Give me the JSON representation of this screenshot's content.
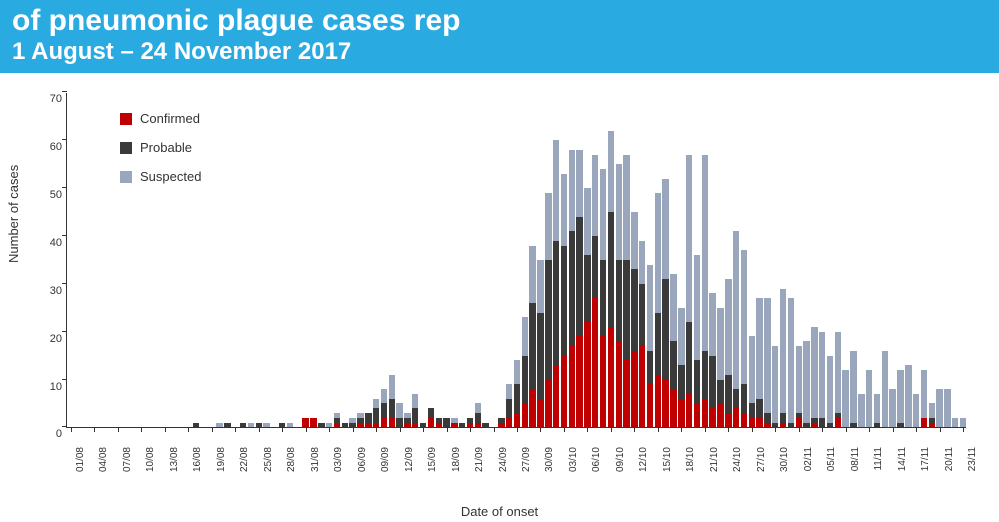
{
  "banner": {
    "line1_fragment": "of pneumonic plague cases rep",
    "line2_fragment": "1 August – 24 November 2017"
  },
  "chart": {
    "type": "stacked-bar",
    "ylabel": "Number of cases",
    "xlabel": "Date of onset",
    "ylim": [
      0,
      70
    ],
    "ytick_step": 10,
    "yticks": [
      0,
      10,
      20,
      30,
      40,
      50,
      60,
      70
    ],
    "background_color": "#ffffff",
    "axis_color": "#333333",
    "label_fontsize": 13,
    "tick_fontsize": 10,
    "bar_gap_ratio": 0.18,
    "series": [
      {
        "key": "confirmed",
        "label": "Confirmed",
        "color": "#c00000"
      },
      {
        "key": "probable",
        "label": "Probable",
        "color": "#3a3a3a"
      },
      {
        "key": "suspected",
        "label": "Suspected",
        "color": "#9aa6bb"
      }
    ],
    "x_tick_labels": [
      "01/08",
      "04/08",
      "07/08",
      "10/08",
      "13/08",
      "16/08",
      "19/08",
      "22/08",
      "25/08",
      "28/08",
      "31/08",
      "03/09",
      "06/09",
      "09/09",
      "12/09",
      "15/09",
      "18/09",
      "21/09",
      "24/09",
      "27/09",
      "30/09",
      "03/10",
      "06/10",
      "09/10",
      "12/10",
      "15/10",
      "18/10",
      "21/10",
      "24/10",
      "27/10",
      "30/10",
      "02/11",
      "05/11",
      "08/11",
      "11/11",
      "14/11",
      "17/11",
      "20/11",
      "23/11"
    ],
    "x_tick_every": 3,
    "data": [
      {
        "c": 0,
        "p": 0,
        "s": 0
      },
      {
        "c": 0,
        "p": 0,
        "s": 0
      },
      {
        "c": 0,
        "p": 0,
        "s": 0
      },
      {
        "c": 0,
        "p": 0,
        "s": 0
      },
      {
        "c": 0,
        "p": 0,
        "s": 0
      },
      {
        "c": 0,
        "p": 0,
        "s": 0
      },
      {
        "c": 0,
        "p": 0,
        "s": 0
      },
      {
        "c": 0,
        "p": 0,
        "s": 0
      },
      {
        "c": 0,
        "p": 0,
        "s": 0
      },
      {
        "c": 0,
        "p": 0,
        "s": 0
      },
      {
        "c": 0,
        "p": 0,
        "s": 0
      },
      {
        "c": 0,
        "p": 0,
        "s": 0
      },
      {
        "c": 0,
        "p": 0,
        "s": 0
      },
      {
        "c": 0,
        "p": 0,
        "s": 0
      },
      {
        "c": 0,
        "p": 0,
        "s": 0
      },
      {
        "c": 0,
        "p": 0,
        "s": 0
      },
      {
        "c": 0,
        "p": 1,
        "s": 0
      },
      {
        "c": 0,
        "p": 0,
        "s": 0
      },
      {
        "c": 0,
        "p": 0,
        "s": 0
      },
      {
        "c": 0,
        "p": 0,
        "s": 1
      },
      {
        "c": 0,
        "p": 1,
        "s": 0
      },
      {
        "c": 0,
        "p": 0,
        "s": 0
      },
      {
        "c": 0,
        "p": 1,
        "s": 0
      },
      {
        "c": 0,
        "p": 0,
        "s": 1
      },
      {
        "c": 0,
        "p": 1,
        "s": 0
      },
      {
        "c": 0,
        "p": 0,
        "s": 1
      },
      {
        "c": 0,
        "p": 0,
        "s": 0
      },
      {
        "c": 0,
        "p": 1,
        "s": 0
      },
      {
        "c": 0,
        "p": 0,
        "s": 1
      },
      {
        "c": 0,
        "p": 0,
        "s": 0
      },
      {
        "c": 2,
        "p": 0,
        "s": 0
      },
      {
        "c": 2,
        "p": 0,
        "s": 0
      },
      {
        "c": 0,
        "p": 1,
        "s": 0
      },
      {
        "c": 0,
        "p": 0,
        "s": 1
      },
      {
        "c": 1,
        "p": 1,
        "s": 1
      },
      {
        "c": 0,
        "p": 1,
        "s": 0
      },
      {
        "c": 0,
        "p": 1,
        "s": 1
      },
      {
        "c": 1,
        "p": 1,
        "s": 1
      },
      {
        "c": 1,
        "p": 2,
        "s": 0
      },
      {
        "c": 1,
        "p": 3,
        "s": 2
      },
      {
        "c": 2,
        "p": 3,
        "s": 3
      },
      {
        "c": 2,
        "p": 4,
        "s": 5
      },
      {
        "c": 0,
        "p": 2,
        "s": 3
      },
      {
        "c": 1,
        "p": 1,
        "s": 1
      },
      {
        "c": 1,
        "p": 3,
        "s": 3
      },
      {
        "c": 0,
        "p": 1,
        "s": 0
      },
      {
        "c": 2,
        "p": 2,
        "s": 0
      },
      {
        "c": 1,
        "p": 1,
        "s": 0
      },
      {
        "c": 0,
        "p": 2,
        "s": 0
      },
      {
        "c": 1,
        "p": 0,
        "s": 1
      },
      {
        "c": 0,
        "p": 1,
        "s": 0
      },
      {
        "c": 1,
        "p": 1,
        "s": 0
      },
      {
        "c": 1,
        "p": 2,
        "s": 2
      },
      {
        "c": 0,
        "p": 1,
        "s": 0
      },
      {
        "c": 0,
        "p": 0,
        "s": 0
      },
      {
        "c": 1,
        "p": 1,
        "s": 0
      },
      {
        "c": 2,
        "p": 4,
        "s": 3
      },
      {
        "c": 3,
        "p": 6,
        "s": 5
      },
      {
        "c": 5,
        "p": 10,
        "s": 8
      },
      {
        "c": 8,
        "p": 18,
        "s": 12
      },
      {
        "c": 6,
        "p": 18,
        "s": 11
      },
      {
        "c": 10,
        "p": 25,
        "s": 14
      },
      {
        "c": 13,
        "p": 26,
        "s": 21
      },
      {
        "c": 15,
        "p": 23,
        "s": 15
      },
      {
        "c": 17,
        "p": 24,
        "s": 17
      },
      {
        "c": 19,
        "p": 25,
        "s": 14
      },
      {
        "c": 22,
        "p": 14,
        "s": 14
      },
      {
        "c": 27,
        "p": 13,
        "s": 17
      },
      {
        "c": 19,
        "p": 16,
        "s": 19
      },
      {
        "c": 21,
        "p": 24,
        "s": 17
      },
      {
        "c": 18,
        "p": 17,
        "s": 20
      },
      {
        "c": 14,
        "p": 21,
        "s": 22
      },
      {
        "c": 16,
        "p": 17,
        "s": 12
      },
      {
        "c": 17,
        "p": 13,
        "s": 9
      },
      {
        "c": 9,
        "p": 7,
        "s": 18
      },
      {
        "c": 11,
        "p": 13,
        "s": 25
      },
      {
        "c": 10,
        "p": 21,
        "s": 21
      },
      {
        "c": 8,
        "p": 10,
        "s": 14
      },
      {
        "c": 6,
        "p": 7,
        "s": 12
      },
      {
        "c": 7,
        "p": 15,
        "s": 35
      },
      {
        "c": 5,
        "p": 9,
        "s": 22
      },
      {
        "c": 6,
        "p": 10,
        "s": 41
      },
      {
        "c": 4,
        "p": 11,
        "s": 13
      },
      {
        "c": 5,
        "p": 5,
        "s": 15
      },
      {
        "c": 3,
        "p": 8,
        "s": 20
      },
      {
        "c": 4,
        "p": 4,
        "s": 33
      },
      {
        "c": 3,
        "p": 6,
        "s": 28
      },
      {
        "c": 2,
        "p": 3,
        "s": 14
      },
      {
        "c": 2,
        "p": 4,
        "s": 21
      },
      {
        "c": 1,
        "p": 2,
        "s": 24
      },
      {
        "c": 0,
        "p": 1,
        "s": 16
      },
      {
        "c": 1,
        "p": 2,
        "s": 26
      },
      {
        "c": 0,
        "p": 1,
        "s": 26
      },
      {
        "c": 2,
        "p": 1,
        "s": 14
      },
      {
        "c": 0,
        "p": 1,
        "s": 17
      },
      {
        "c": 1,
        "p": 1,
        "s": 19
      },
      {
        "c": 0,
        "p": 2,
        "s": 18
      },
      {
        "c": 0,
        "p": 1,
        "s": 14
      },
      {
        "c": 2,
        "p": 1,
        "s": 17
      },
      {
        "c": 0,
        "p": 0,
        "s": 12
      },
      {
        "c": 0,
        "p": 1,
        "s": 15
      },
      {
        "c": 0,
        "p": 0,
        "s": 7
      },
      {
        "c": 0,
        "p": 0,
        "s": 12
      },
      {
        "c": 0,
        "p": 1,
        "s": 6
      },
      {
        "c": 0,
        "p": 0,
        "s": 16
      },
      {
        "c": 0,
        "p": 0,
        "s": 8
      },
      {
        "c": 0,
        "p": 1,
        "s": 11
      },
      {
        "c": 0,
        "p": 0,
        "s": 13
      },
      {
        "c": 0,
        "p": 0,
        "s": 7
      },
      {
        "c": 2,
        "p": 0,
        "s": 10
      },
      {
        "c": 1,
        "p": 1,
        "s": 3
      },
      {
        "c": 0,
        "p": 0,
        "s": 8
      },
      {
        "c": 0,
        "p": 0,
        "s": 8
      },
      {
        "c": 0,
        "p": 0,
        "s": 2
      },
      {
        "c": 0,
        "p": 0,
        "s": 2
      }
    ]
  }
}
